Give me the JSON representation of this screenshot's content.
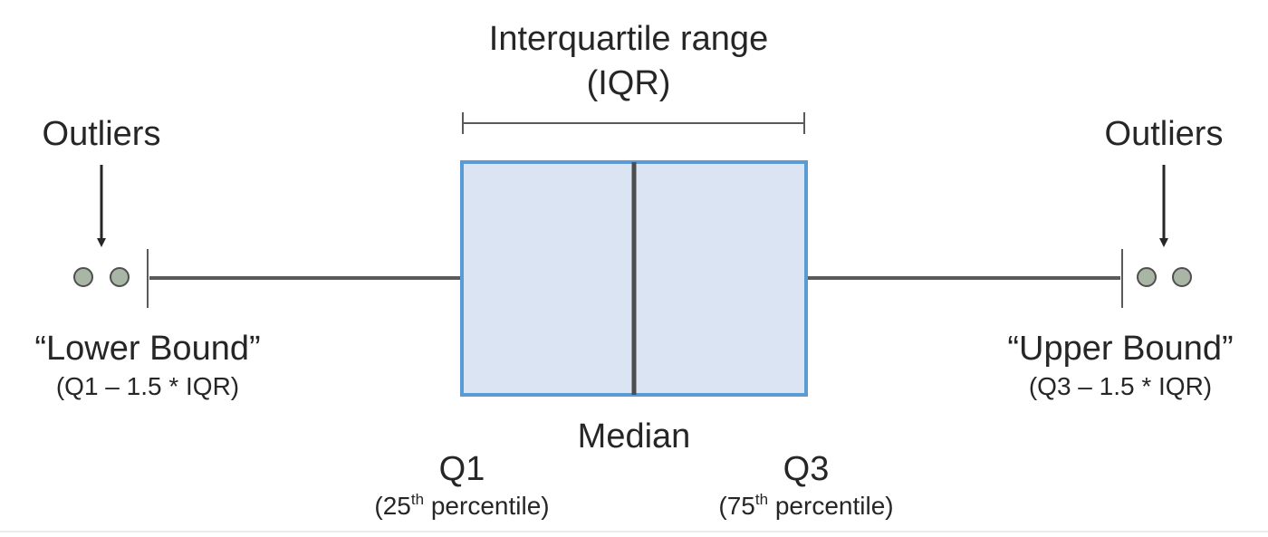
{
  "labels": {
    "iqr_title": "Interquartile range",
    "iqr_abbrev": "(IQR)",
    "outliers_left": "Outliers",
    "outliers_right": "Outliers",
    "lower_bound": "“Lower Bound”",
    "lower_bound_formula": "(Q1 – 1.5 * IQR)",
    "upper_bound": "“Upper Bound”",
    "upper_bound_formula": "(Q3 – 1.5 * IQR)",
    "median": "Median",
    "q1": "Q1",
    "q1_pct_num": "25",
    "q1_pct_sup": "th",
    "q1_pct_rest": " percentile)",
    "q3": "Q3",
    "q3_pct_num": "75",
    "q3_pct_sup": "th",
    "q3_pct_rest": " percentile)"
  },
  "colors": {
    "box_fill": "#dbe4f3",
    "box_stroke": "#5b9bd5",
    "median_line": "#4d4d4d",
    "whisker": "#5a5a5a",
    "outlier_fill": "#a9b5a5",
    "outlier_stroke": "#4f4f4f",
    "text": "#262626"
  }
}
